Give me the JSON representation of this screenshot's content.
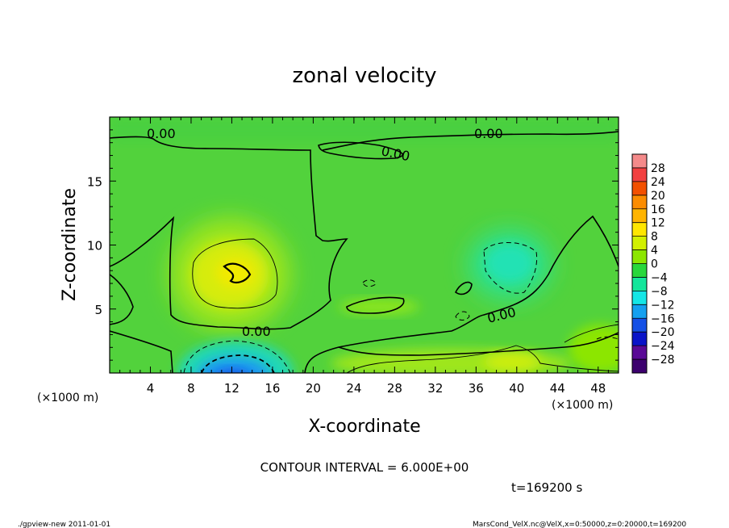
{
  "chart_data": {
    "type": "heatmap",
    "title": "zonal velocity",
    "xlabel": "X-coordinate",
    "ylabel": "Z-coordinate",
    "x_unit_label": "(×1000 m)",
    "y_unit_label": "(×1000 m)",
    "xlim": [
      0,
      50
    ],
    "ylim": [
      0,
      20
    ],
    "x_ticks": [
      "4",
      "8",
      "12",
      "16",
      "20",
      "24",
      "28",
      "32",
      "36",
      "40",
      "44",
      "48"
    ],
    "y_ticks": [
      "5",
      "10",
      "15"
    ],
    "contour_interval_text": "CONTOUR INTERVAL = 6.000E+00",
    "time_text": "t=169200 s",
    "contour_labels": [
      "0.00",
      "0.00",
      "0.00",
      "0.00",
      "0.00"
    ],
    "colorbar": {
      "labels": [
        "28",
        "24",
        "20",
        "16",
        "12",
        "8",
        "4",
        "0",
        "−4",
        "−8",
        "−12",
        "−16",
        "−20",
        "−24",
        "−28"
      ],
      "colors": [
        "#f48a8a",
        "#f24040",
        "#f25000",
        "#fb8c00",
        "#ffb400",
        "#ffe600",
        "#d2f000",
        "#8ce600",
        "#28d73c",
        "#14e69b",
        "#14e6e6",
        "#14a0f0",
        "#1450e6",
        "#0a14c8",
        "#5a0a96",
        "#3c006e"
      ]
    },
    "features": [
      {
        "kind": "max",
        "x": 12,
        "z": 8,
        "value": 9
      },
      {
        "kind": "min",
        "x": 13,
        "z": 0.5,
        "value": -17
      },
      {
        "kind": "min",
        "x": 39,
        "z": 8.5,
        "value": -7
      },
      {
        "kind": "max",
        "x": 40,
        "z": 1.5,
        "value": 5
      }
    ]
  },
  "footer": {
    "left": "./gpview-new  2011-01-01",
    "right": "MarsCond_VelX.nc@VelX,x=0:50000,z=0:20000,t=169200"
  },
  "colors": {
    "background": "#52d23c",
    "frame": "#000000"
  }
}
